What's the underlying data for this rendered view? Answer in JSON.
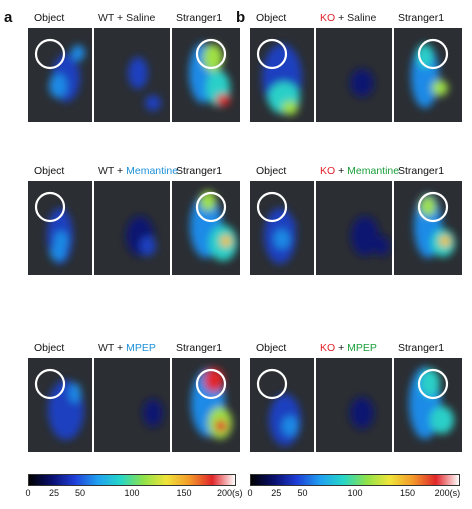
{
  "panels": [
    {
      "letter": "a",
      "groups": [
        {
          "genotype": "WT",
          "genotype_color": "#222222",
          "plus": " + ",
          "treatment": "Saline",
          "treatment_color": "#222222"
        },
        {
          "genotype": "WT",
          "genotype_color": "#222222",
          "plus": " + ",
          "treatment": "Memantine",
          "treatment_color": "#1e90d8"
        },
        {
          "genotype": "WT",
          "genotype_color": "#222222",
          "plus": " + ",
          "treatment": "MPEP",
          "treatment_color": "#1e90d8"
        }
      ]
    },
    {
      "letter": "b",
      "groups": [
        {
          "genotype": "KO",
          "genotype_color": "#e0202a",
          "plus": " + ",
          "treatment": "Saline",
          "treatment_color": "#222222"
        },
        {
          "genotype": "KO",
          "genotype_color": "#e0202a",
          "plus": " + ",
          "treatment": "Memantine",
          "treatment_color": "#1a9e3a"
        },
        {
          "genotype": "KO",
          "genotype_color": "#e0202a",
          "plus": " + ",
          "treatment": "MPEP",
          "treatment_color": "#1a9e3a"
        }
      ]
    }
  ],
  "chamber_labels": {
    "left": "Object",
    "right": "Stranger1"
  },
  "colorbar": {
    "ticks": [
      "0",
      "25",
      "50",
      "100",
      "150",
      "200(s)"
    ],
    "tick_values": [
      0,
      25,
      50,
      100,
      150,
      200
    ],
    "range": [
      0,
      200
    ],
    "unit": "s",
    "colors": [
      "#000000",
      "#0a0f6e",
      "#1f3fd8",
      "#20a0f0",
      "#26d6c8",
      "#8ee24a",
      "#f0e43a",
      "#f39a2a",
      "#e0262a",
      "#ffffff"
    ]
  }
}
